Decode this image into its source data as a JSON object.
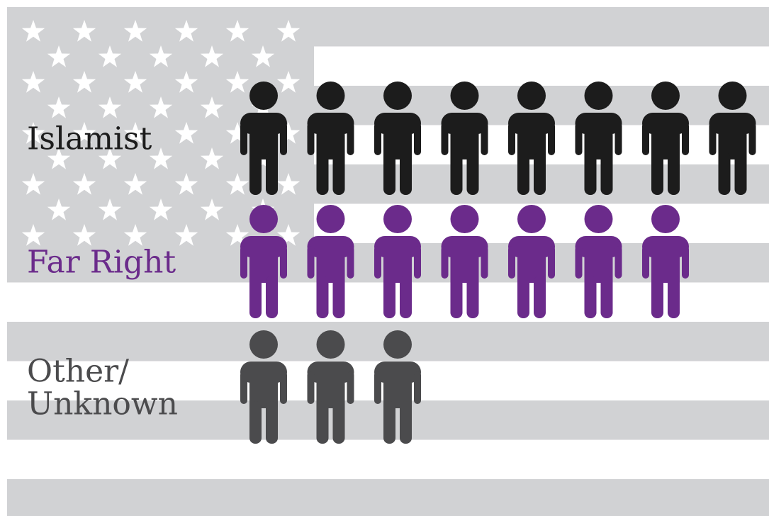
{
  "chart_data": {
    "type": "pictogram",
    "categories": [
      "Islamist",
      "Far Right",
      "Other/ Unknown"
    ],
    "values": [
      8,
      7,
      3
    ],
    "colors": [
      "#1c1c1c",
      "#6b2b8b",
      "#4b4b4d"
    ]
  }
}
